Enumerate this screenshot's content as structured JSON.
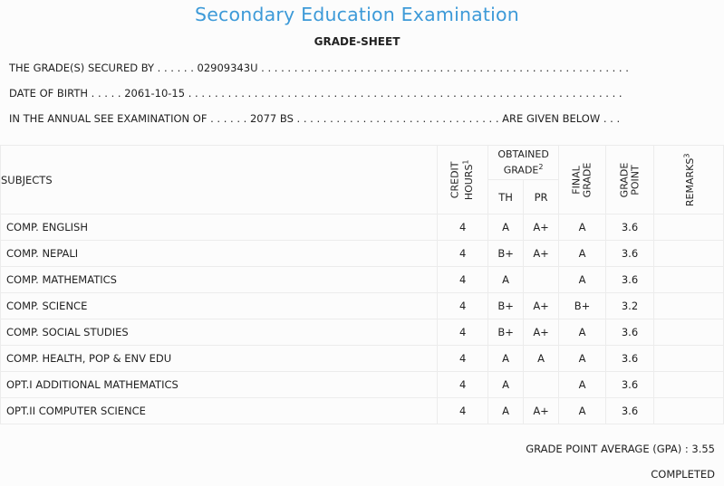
{
  "header": {
    "title": "Secondary Education Examination",
    "subtitle": "GRADE-SHEET"
  },
  "info": {
    "line1": "THE GRADE(S) SECURED BY . . . . . . 02909343U . . . . . . . . . . . . . . . . . . . . . . . . . . . . . . . . . . . . . . . . . . . . . . . . . . . . . . . .",
    "line2": "DATE OF BIRTH . . . . . 2061-10-15 . . . . . . . . . . . . . . . . . . . . . . . . . . . . . . . . . . . . . . . . . . . . . . . . . . . . . . . . . . . . . . . . . .",
    "line3": "IN THE ANNUAL SEE EXAMINATION OF . . . . . . 2077 BS . . . . . . . . . . . . . . . . . . . . . . . . . . . . . . . ARE GIVEN BELOW . . ."
  },
  "table": {
    "col_subjects": "SUBJECTS",
    "col_credit_line1": "CREDIT",
    "col_credit_line2": "HOURS",
    "col_credit_sup": "1",
    "col_obtained_line1": "OBTAINED",
    "col_obtained_line2": "GRADE",
    "col_obtained_sup": "2",
    "col_th": "TH",
    "col_pr": "PR",
    "col_final_line1": "FINAL",
    "col_final_line2": "GRADE",
    "col_gp_line1": "GRADE",
    "col_gp_line2": "POINT",
    "col_remarks": "REMARKS",
    "col_remarks_sup": "3",
    "rows": [
      {
        "subject": "COMP. ENGLISH",
        "credit": "4",
        "th": "A",
        "pr": "A+",
        "final": "A",
        "gp": "3.6",
        "remarks": ""
      },
      {
        "subject": "COMP. NEPALI",
        "credit": "4",
        "th": "B+",
        "pr": "A+",
        "final": "A",
        "gp": "3.6",
        "remarks": ""
      },
      {
        "subject": "COMP. MATHEMATICS",
        "credit": "4",
        "th": "A",
        "pr": "",
        "final": "A",
        "gp": "3.6",
        "remarks": ""
      },
      {
        "subject": "COMP. SCIENCE",
        "credit": "4",
        "th": "B+",
        "pr": "A+",
        "final": "B+",
        "gp": "3.2",
        "remarks": ""
      },
      {
        "subject": "COMP. SOCIAL STUDIES",
        "credit": "4",
        "th": "B+",
        "pr": "A+",
        "final": "A",
        "gp": "3.6",
        "remarks": ""
      },
      {
        "subject": "COMP. HEALTH, POP & ENV EDU",
        "credit": "4",
        "th": "A",
        "pr": "A",
        "final": "A",
        "gp": "3.6",
        "remarks": ""
      },
      {
        "subject": "OPT.I ADDITIONAL MATHEMATICS",
        "credit": "4",
        "th": "A",
        "pr": "",
        "final": "A",
        "gp": "3.6",
        "remarks": ""
      },
      {
        "subject": "OPT.II COMPUTER SCIENCE",
        "credit": "4",
        "th": "A",
        "pr": "A+",
        "final": "A",
        "gp": "3.6",
        "remarks": ""
      }
    ]
  },
  "footer": {
    "gpa": "GRADE POINT AVERAGE (GPA) : 3.55",
    "status": "COMPLETED"
  },
  "colors": {
    "title": "#3d9ad8",
    "text": "#222222",
    "border": "#ececec"
  }
}
